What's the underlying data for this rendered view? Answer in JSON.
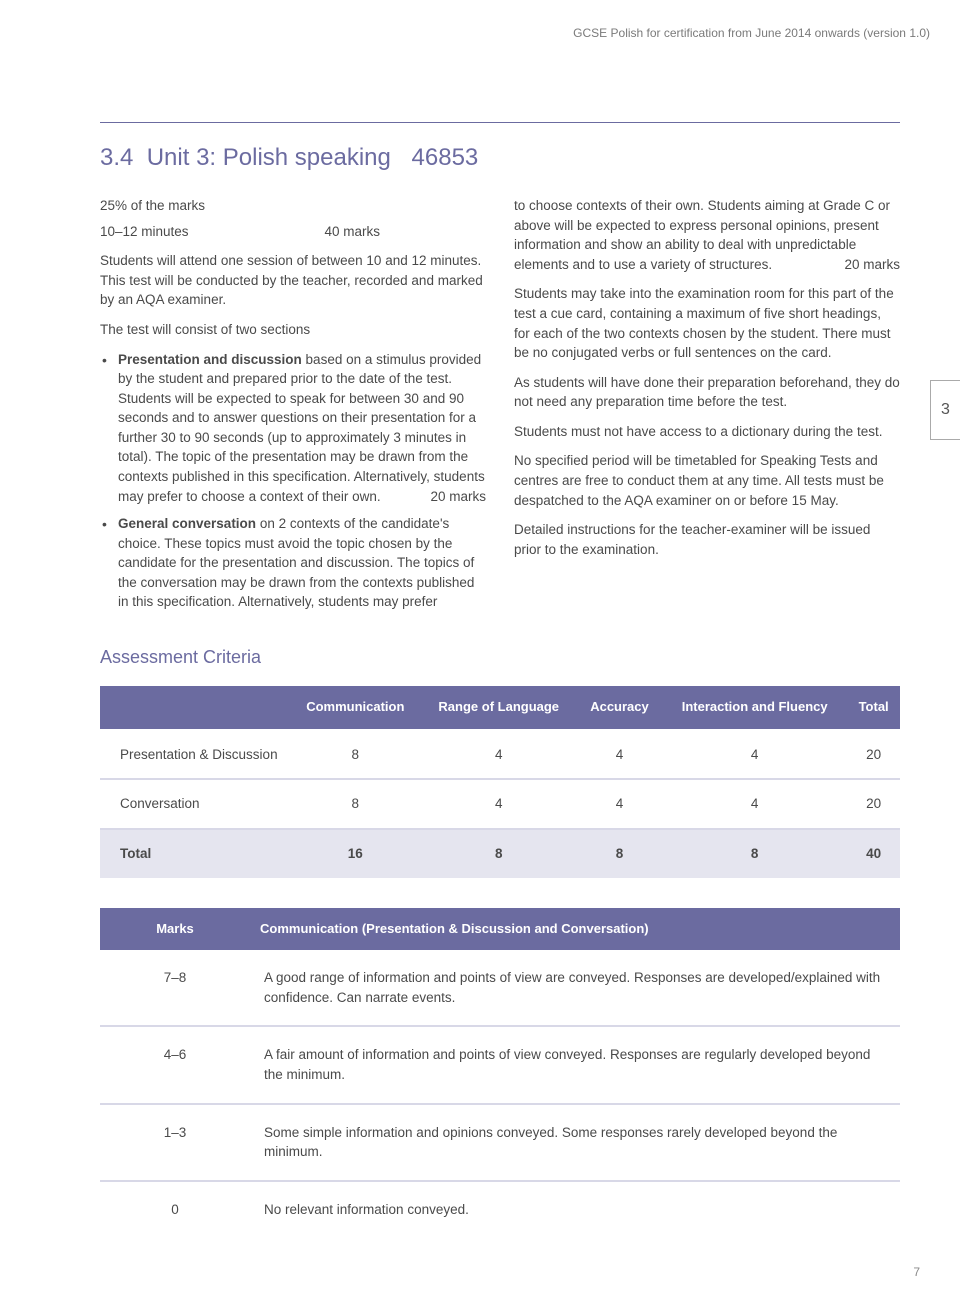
{
  "header": "GCSE Polish for certification from June 2014 onwards (version 1.0)",
  "section": {
    "number": "3.4",
    "title": "Unit 3: Polish speaking",
    "code": "46853"
  },
  "intro": {
    "marks_percent": "25% of the marks",
    "time": "10–12 minutes",
    "marks": "40 marks",
    "p1": "Students will attend one session of between 10 and 12 minutes. This test will be conducted by the teacher, recorded and marked by an AQA examiner.",
    "p2": "The test will consist of two sections"
  },
  "bullet1": {
    "label": "Presentation and discussion",
    "text": " based on a stimulus provided by the student and prepared prior to the date of the test. Students will be expected to speak for between 30 and 90 seconds and to answer questions on their presentation for a further 30 to 90 seconds (up to approximately 3 minutes in total). The topic of the presentation may be drawn from the contexts published in this specification. Alternatively, students may prefer to choose a context of their own.",
    "marks": "20 marks"
  },
  "bullet2": {
    "label": "General conversation",
    "text": " on 2 contexts of the candidate's choice. These topics must avoid the topic chosen by the candidate for the presentation and discussion. The topics of the conversation may be drawn from the contexts published in this specification. Alternatively, students may prefer"
  },
  "col2": {
    "p1a": "to choose contexts of their own. Students aiming at Grade C or above will be expected to express personal opinions, present information and show an ability to deal with unpredictable elements and to use a variety of structures.",
    "p1marks": "20 marks",
    "p2": "Students may take into the examination room for this part of the test a cue card, containing a maximum of five short headings, for each of the two contexts chosen by the student. There must be no conjugated verbs or full sentences on the card.",
    "p3": "As students will have done their preparation beforehand, they do not need any preparation time before the test.",
    "p4": "Students must not have access to a dictionary during the test.",
    "p5": "No specified period will be timetabled for Speaking Tests and centres are free to conduct them at any time. All tests must be despatched to the AQA examiner on or before 15 May.",
    "p6": "Detailed instructions for the teacher-examiner will be issued prior to the examination."
  },
  "tab": "3",
  "assessment_heading": "Assessment Criteria",
  "table1": {
    "columns": [
      "",
      "Communication",
      "Range of Language",
      "Accuracy",
      "Interaction and Fluency",
      "Total"
    ],
    "rows": [
      {
        "label": "Presentation & Discussion",
        "cells": [
          "8",
          "4",
          "4",
          "4",
          "20"
        ]
      },
      {
        "label": "Conversation",
        "cells": [
          "8",
          "4",
          "4",
          "4",
          "20"
        ]
      }
    ],
    "total": {
      "label": "Total",
      "cells": [
        "16",
        "8",
        "8",
        "8",
        "40"
      ]
    }
  },
  "table2": {
    "columns": [
      "Marks",
      "Communication (Presentation & Discussion and Conversation)"
    ],
    "rows": [
      {
        "mark": "7–8",
        "desc": "A good range of information and points of view are conveyed. Responses are developed/explained with confidence. Can narrate events."
      },
      {
        "mark": "4–6",
        "desc": "A fair amount of information and points of view conveyed. Responses are regularly developed beyond the minimum."
      },
      {
        "mark": "1–3",
        "desc": "Some simple information and opinions conveyed. Some responses rarely developed beyond the minimum."
      },
      {
        "mark": "0",
        "desc": "No relevant information conveyed."
      }
    ]
  },
  "page_number": "7"
}
